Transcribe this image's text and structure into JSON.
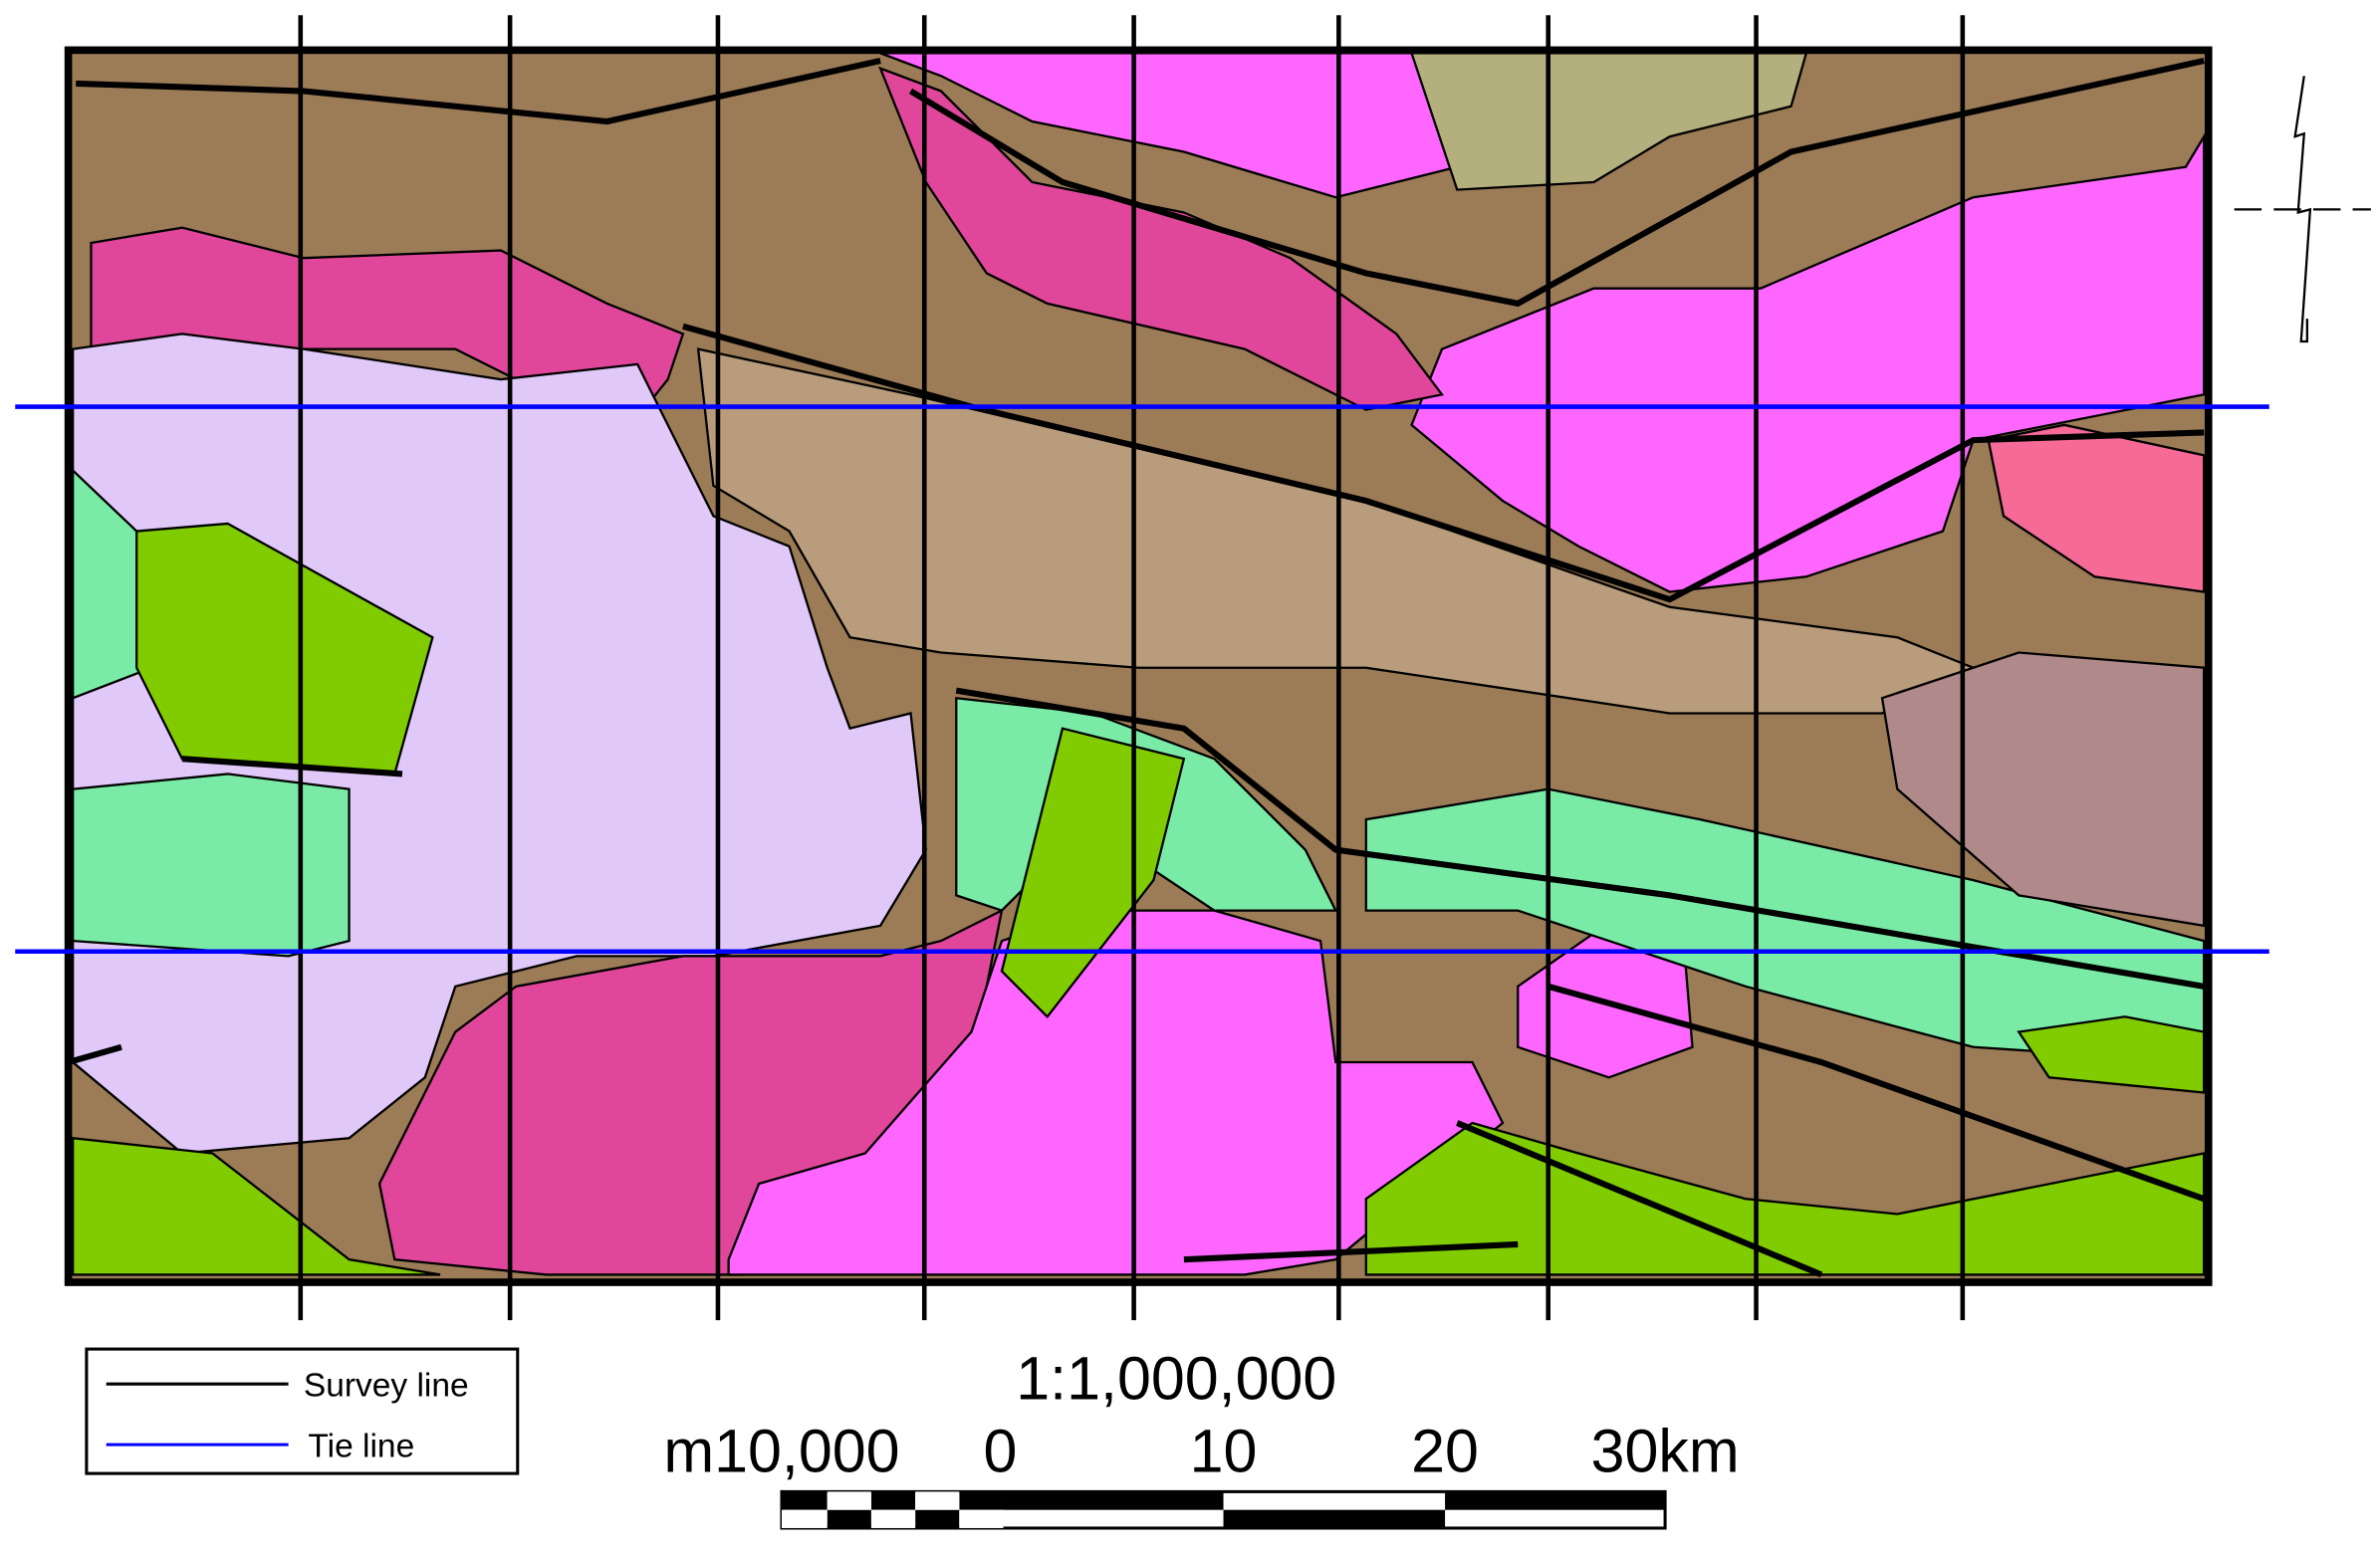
{
  "legend": {
    "items": [
      {
        "label": "Survey line"
      },
      {
        "label": "Tie line"
      }
    ]
  },
  "scale": {
    "ratio": "1:1,000,000",
    "labels": [
      "m10,000",
      "0",
      "10",
      "20",
      "30km"
    ]
  }
}
